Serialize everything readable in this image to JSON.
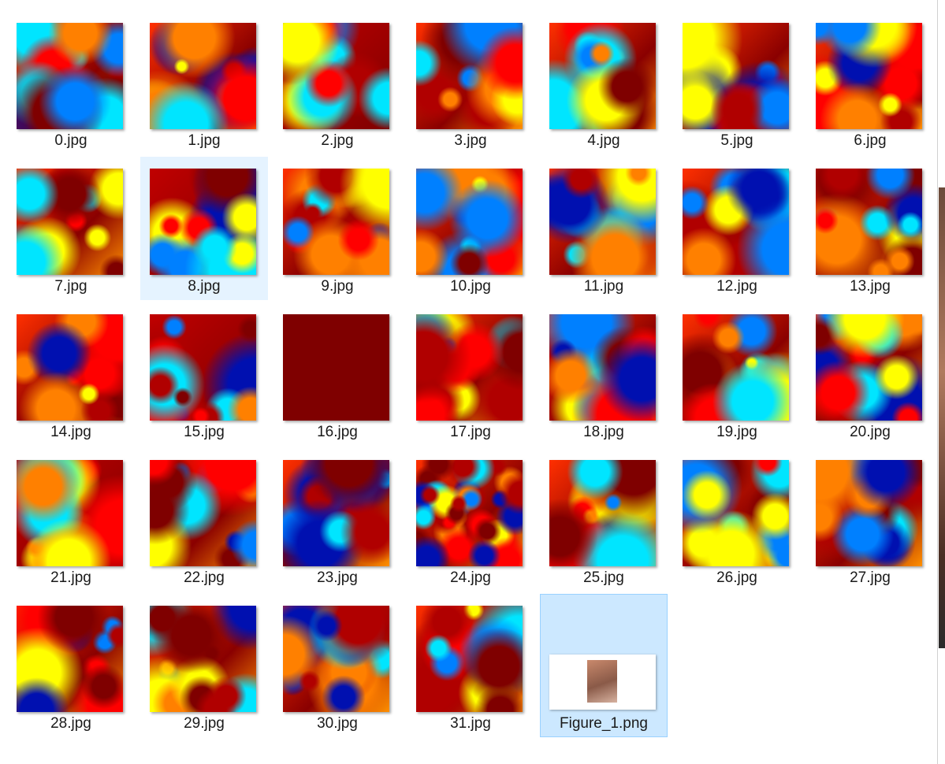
{
  "files": [
    "0.jpg",
    "1.jpg",
    "2.jpg",
    "3.jpg",
    "4.jpg",
    "5.jpg",
    "6.jpg",
    "7.jpg",
    "8.jpg",
    "9.jpg",
    "10.jpg",
    "11.jpg",
    "12.jpg",
    "13.jpg",
    "14.jpg",
    "15.jpg",
    "16.jpg",
    "17.jpg",
    "18.jpg",
    "19.jpg",
    "20.jpg",
    "21.jpg",
    "22.jpg",
    "23.jpg",
    "24.jpg",
    "25.jpg",
    "26.jpg",
    "27.jpg",
    "28.jpg",
    "29.jpg",
    "30.jpg",
    "31.jpg",
    "Figure_1.png"
  ]
}
